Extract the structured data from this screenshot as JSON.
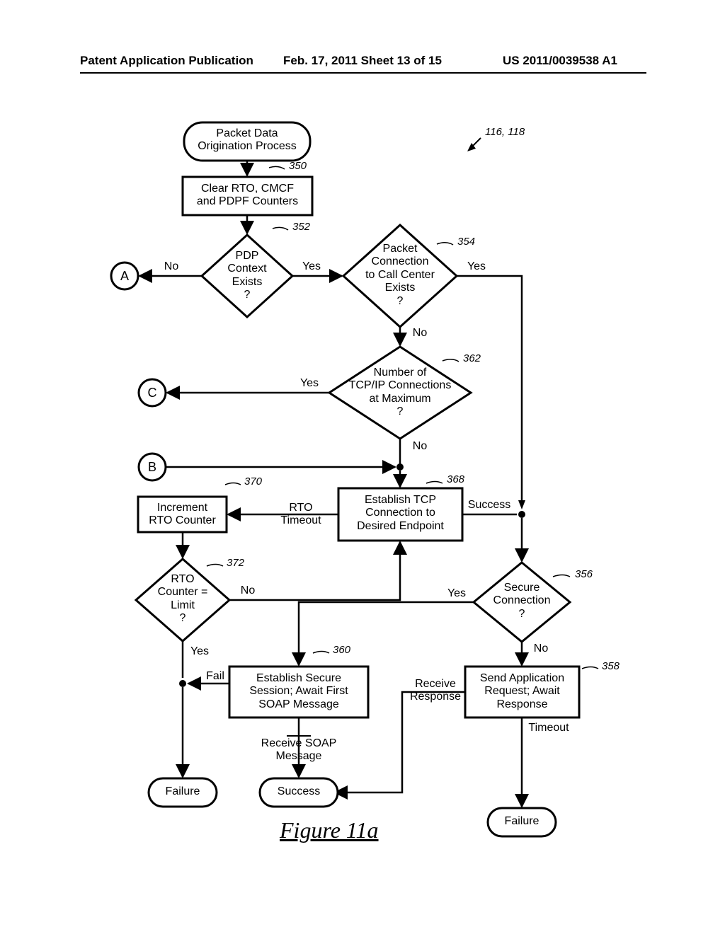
{
  "header": {
    "left": "Patent Application Publication",
    "mid": "Feb. 17, 2011  Sheet 13 of 15",
    "right": "US 2011/0039538 A1"
  },
  "figure_caption": "Figure 11a",
  "page_ref": "116, 118",
  "labels": {
    "350": "350",
    "352": "352",
    "354": "354",
    "356": "356",
    "358": "358",
    "360": "360",
    "362": "362",
    "368": "368",
    "370": "370",
    "372": "372"
  },
  "edge_text": {
    "no_352": "No",
    "yes_352": "Yes",
    "yes_354": "Yes",
    "no_354": "No",
    "yes_362": "Yes",
    "no_362": "No",
    "rto_timeout": "RTO\nTimeout",
    "success_368": "Success",
    "no_372": "No",
    "yes_372": "Yes",
    "yes_356": "Yes",
    "no_356": "No",
    "timeout_358": "Timeout",
    "fail_360": "Fail",
    "recv_soap": "Receive SOAP\nMessage",
    "recv_resp": "Receive\nResponse"
  },
  "nodes": {
    "start": "Packet Data\nOrigination Process",
    "clear": "Clear RTO, CMCF\nand PDPF Counters",
    "pdp": "PDP\nContext\nExists\n?",
    "pkt": "Packet\nConnection\nto Call Center\nExists\n?",
    "tcpip": "Number of\nTCP/IP Connections\nat Maximum\n?",
    "A": "A",
    "C": "C",
    "B": "B",
    "est_tcp": "Establish TCP\nConnection to\nDesired Endpoint",
    "inc_rto": "Increment\nRTO Counter",
    "rto_lim": "RTO\nCounter =\nLimit\n?",
    "secure": "Secure\nConnection\n?",
    "soap": "Establish Secure\nSession; Await First\nSOAP Message",
    "send_app": "Send Application\nRequest; Await\nResponse",
    "failure_left": "Failure",
    "success_end": "Success",
    "failure_right": "Failure"
  },
  "colors": {
    "stroke": "#000000",
    "bg": "#ffffff",
    "text": "#000000"
  }
}
